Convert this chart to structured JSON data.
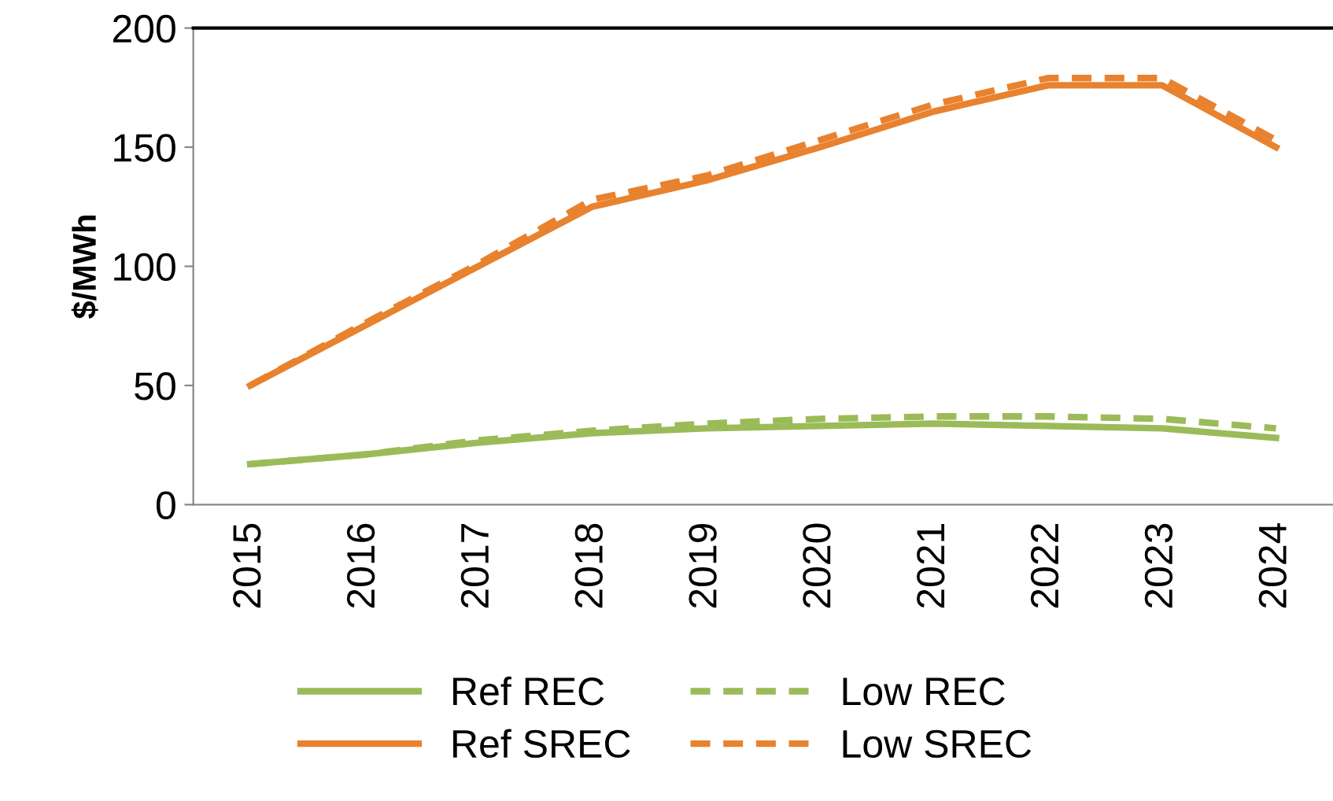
{
  "chart_data": {
    "type": "line",
    "ylabel": "$/MWh",
    "categories": [
      "2015",
      "2016",
      "2017",
      "2018",
      "2019",
      "2020",
      "2021",
      "2022",
      "2023",
      "2024"
    ],
    "series": [
      {
        "name": "Ref REC",
        "color": "#9bbb59",
        "line_style": "solid",
        "values": [
          17,
          21,
          26,
          30,
          32,
          33,
          34,
          33,
          32,
          28
        ]
      },
      {
        "name": "Ref SREC",
        "color": "#e8822e",
        "line_style": "solid",
        "values": [
          50,
          75,
          100,
          125,
          136,
          150,
          165,
          176,
          176,
          150
        ]
      },
      {
        "name": "Low REC",
        "color": "#9bbb59",
        "line_style": "dashed",
        "values": [
          17,
          21,
          27,
          31,
          34,
          36,
          37,
          37,
          36,
          32
        ]
      },
      {
        "name": "Low SREC",
        "color": "#e8822e",
        "line_style": "dashed",
        "values": [
          50,
          76,
          101,
          128,
          138,
          153,
          168,
          179,
          179,
          153
        ]
      }
    ],
    "ylim": [
      0,
      200
    ],
    "yticks": [
      0,
      50,
      100,
      150,
      200
    ],
    "grid": false,
    "legend": "bottom",
    "marker": "none"
  }
}
